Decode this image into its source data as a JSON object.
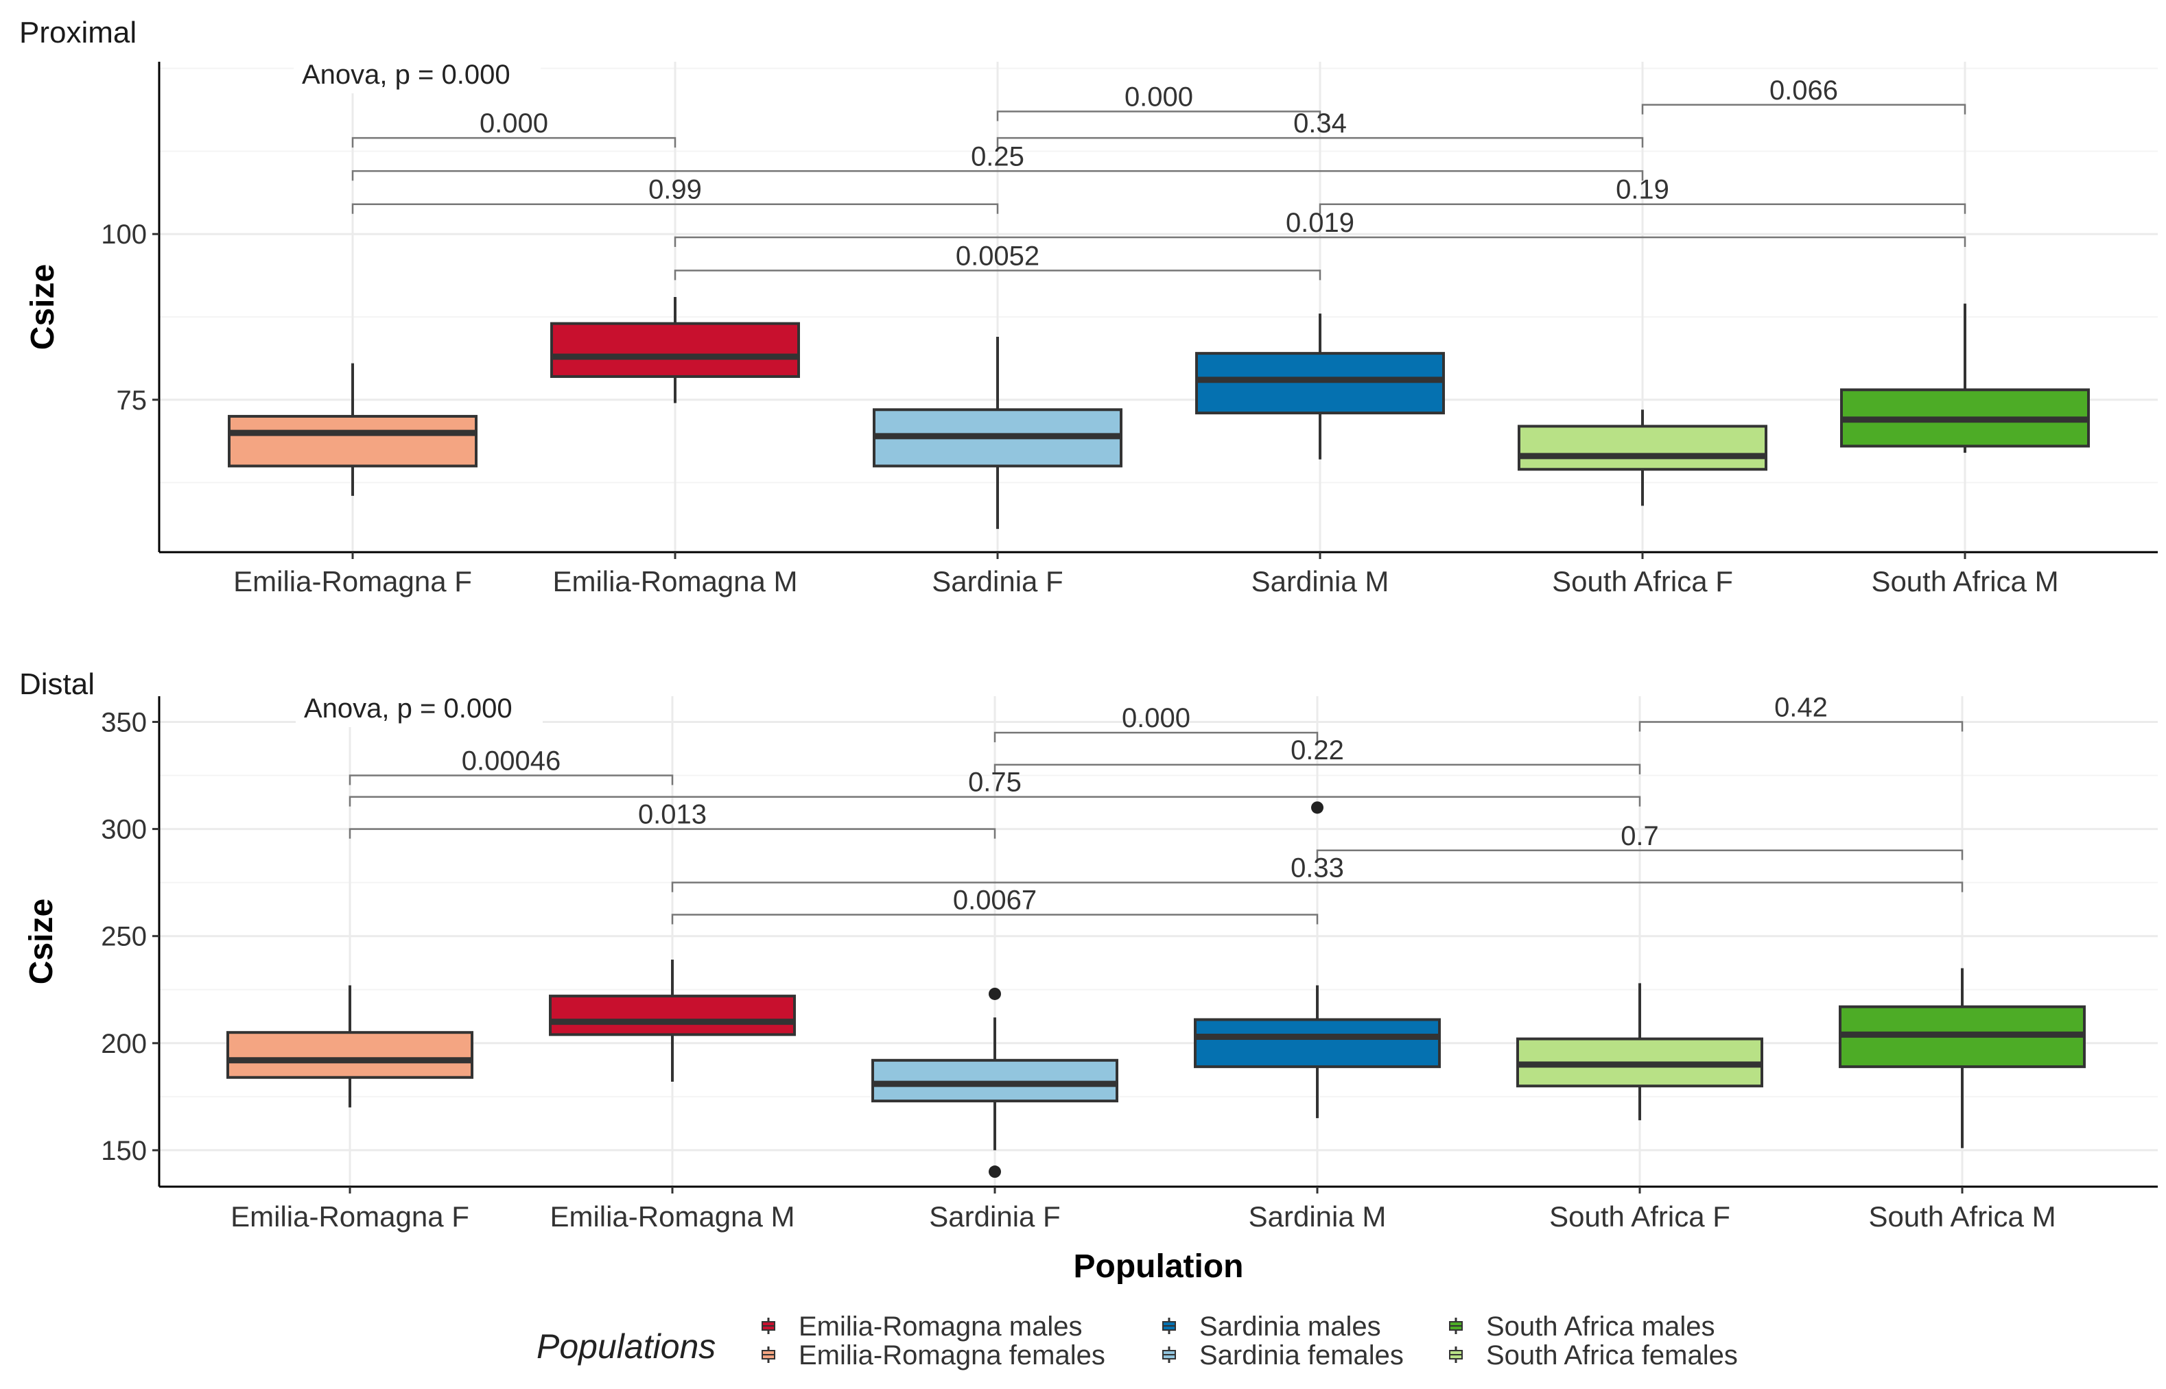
{
  "legend": {
    "title": "Populations",
    "items": [
      {
        "label": "Emilia-Romagna males",
        "color": "#c8102e"
      },
      {
        "label": "Emilia-Romagna females",
        "color": "#f4a582"
      },
      {
        "label": "Sardinia males",
        "color": "#0571b0"
      },
      {
        "label": "Sardinia females",
        "color": "#92c5de"
      },
      {
        "label": "South Africa males",
        "color": "#4dac26"
      },
      {
        "label": "South Africa females",
        "color": "#b8e186"
      }
    ]
  },
  "chart_data": [
    {
      "type": "box",
      "title": "Proximal",
      "xlabel": "",
      "ylabel": "Csize",
      "ylim": [
        52,
        126
      ],
      "yticks": [
        75,
        100
      ],
      "categories": [
        "Emilia-Romagna F",
        "Emilia-Romagna M",
        "Sardinia F",
        "Sardinia M",
        "South Africa F",
        "South Africa M"
      ],
      "colors": [
        "#f4a582",
        "#c8102e",
        "#92c5de",
        "#0571b0",
        "#b8e186",
        "#4dac26"
      ],
      "boxes": [
        {
          "min": 60.5,
          "q1": 65,
          "median": 70,
          "q3": 72.5,
          "max": 80.5
        },
        {
          "min": 74.5,
          "q1": 78.5,
          "median": 81.5,
          "q3": 86.5,
          "max": 90.5
        },
        {
          "min": 55.5,
          "q1": 65,
          "median": 69.5,
          "q3": 73.5,
          "max": 84.5
        },
        {
          "min": 66,
          "q1": 73,
          "median": 78,
          "q3": 82,
          "max": 88
        },
        {
          "min": 59,
          "q1": 64.5,
          "median": 66.5,
          "q3": 71,
          "max": 73.5
        },
        {
          "min": 67,
          "q1": 68,
          "median": 72,
          "q3": 76.5,
          "max": 89.5
        }
      ],
      "outliers": [],
      "anova": "Anova, p = 0.000",
      "comparisons": [
        {
          "from": 0,
          "to": 1,
          "y": 114.5,
          "label": "0.000"
        },
        {
          "from": 2,
          "to": 3,
          "y": 118.5,
          "label": "0.000"
        },
        {
          "from": 4,
          "to": 5,
          "y": 119.5,
          "label": "0.066"
        },
        {
          "from": 2,
          "to": 4,
          "y": 114.5,
          "label": "0.34"
        },
        {
          "from": 0,
          "to": 4,
          "y": 109.5,
          "label": "0.25"
        },
        {
          "from": 0,
          "to": 2,
          "y": 104.5,
          "label": "0.99"
        },
        {
          "from": 3,
          "to": 5,
          "y": 104.5,
          "label": "0.19"
        },
        {
          "from": 1,
          "to": 5,
          "y": 99.5,
          "label": "0.019"
        },
        {
          "from": 1,
          "to": 3,
          "y": 94.5,
          "label": "0.0052"
        }
      ]
    },
    {
      "type": "box",
      "title": "Distal",
      "xlabel": "Population",
      "ylabel": "Csize",
      "ylim": [
        133,
        362
      ],
      "yticks": [
        150,
        200,
        250,
        300,
        350
      ],
      "categories": [
        "Emilia-Romagna F",
        "Emilia-Romagna M",
        "Sardinia F",
        "Sardinia M",
        "South Africa F",
        "South Africa M"
      ],
      "colors": [
        "#f4a582",
        "#c8102e",
        "#92c5de",
        "#0571b0",
        "#b8e186",
        "#4dac26"
      ],
      "boxes": [
        {
          "min": 170,
          "q1": 184,
          "median": 192,
          "q3": 205,
          "max": 227
        },
        {
          "min": 182,
          "q1": 204,
          "median": 210,
          "q3": 222,
          "max": 239
        },
        {
          "min": 150,
          "q1": 173,
          "median": 181,
          "q3": 192,
          "max": 212
        },
        {
          "min": 165,
          "q1": 189,
          "median": 203,
          "q3": 211,
          "max": 227
        },
        {
          "min": 164,
          "q1": 180,
          "median": 190,
          "q3": 202,
          "max": 228
        },
        {
          "min": 151,
          "q1": 189,
          "median": 204,
          "q3": 217,
          "max": 235
        }
      ],
      "outliers": [
        {
          "box": 2,
          "value": 223
        },
        {
          "box": 2,
          "value": 140
        },
        {
          "box": 3,
          "value": 310
        }
      ],
      "anova": "Anova, p = 0.000",
      "comparisons": [
        {
          "from": 0,
          "to": 1,
          "y": 325,
          "label": "0.00046"
        },
        {
          "from": 2,
          "to": 3,
          "y": 345,
          "label": "0.000"
        },
        {
          "from": 4,
          "to": 5,
          "y": 350,
          "label": "0.42"
        },
        {
          "from": 2,
          "to": 4,
          "y": 330,
          "label": "0.22"
        },
        {
          "from": 0,
          "to": 4,
          "y": 315,
          "label": "0.75"
        },
        {
          "from": 0,
          "to": 2,
          "y": 300,
          "label": "0.013"
        },
        {
          "from": 3,
          "to": 5,
          "y": 290,
          "label": "0.7"
        },
        {
          "from": 1,
          "to": 5,
          "y": 275,
          "label": "0.33"
        },
        {
          "from": 1,
          "to": 3,
          "y": 260,
          "label": "0.0067"
        }
      ]
    }
  ]
}
